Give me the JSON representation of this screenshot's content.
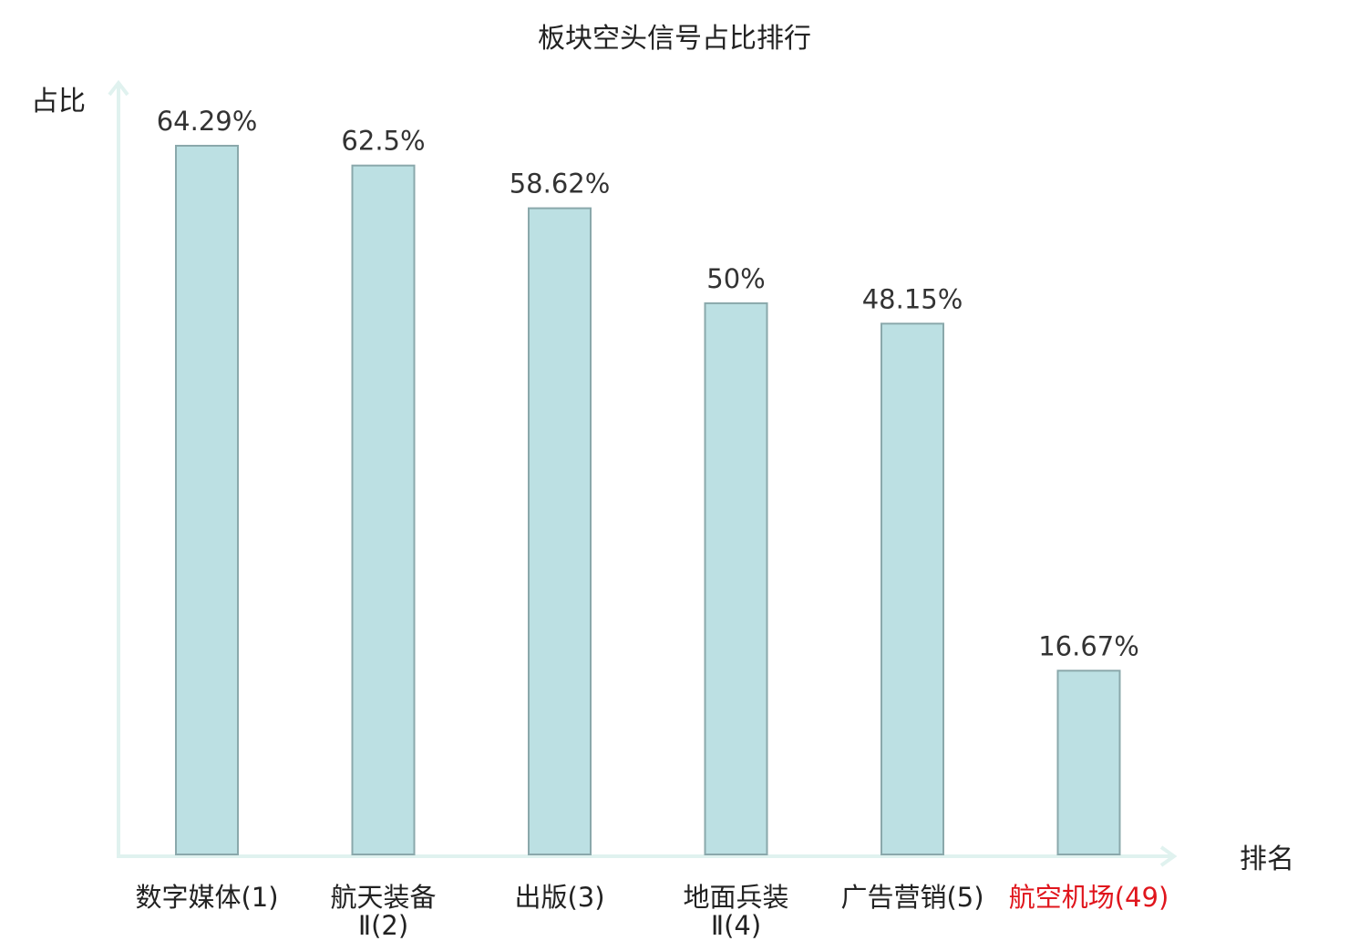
{
  "chart_data": {
    "type": "bar",
    "title": "板块空头信号占比排行",
    "ylabel": "占比",
    "xlabel": "排名",
    "categories": [
      [
        "数字媒体(1)"
      ],
      [
        "航天装备",
        "Ⅱ(2)"
      ],
      [
        "出版(3)"
      ],
      [
        "地面兵装",
        "Ⅱ(4)"
      ],
      [
        "广告营销(5)"
      ],
      [
        "航空机场(49)"
      ]
    ],
    "values": [
      64.29,
      62.5,
      58.62,
      50,
      48.15,
      16.67
    ],
    "value_labels": [
      "64.29%",
      "62.5%",
      "58.62%",
      "50%",
      "48.15%",
      "16.67%"
    ],
    "ylim": [
      0,
      64.29
    ],
    "highlight_index": 5,
    "grid": false,
    "colors": {
      "bar_fill": "#bce0e3",
      "bar_stroke": "#8aa8ab",
      "axis": "#e0f2ef",
      "text": "#222222",
      "value_text": "#333333",
      "highlight": "#e0161d"
    }
  }
}
